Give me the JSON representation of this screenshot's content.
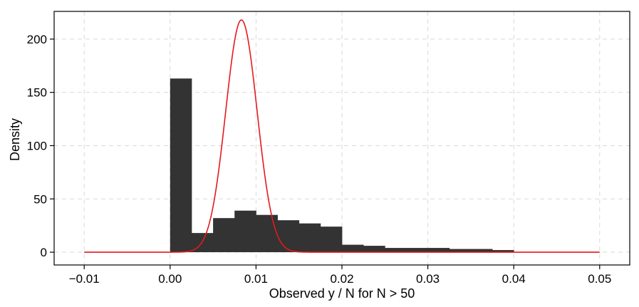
{
  "chart_data": {
    "type": "bar",
    "title": "",
    "xlabel": "Observed y / N for N > 50",
    "ylabel": "Density",
    "xlim": [
      -0.0135,
      0.0535
    ],
    "ylim": [
      -12,
      226
    ],
    "x_ticks": [
      -0.01,
      0.0,
      0.01,
      0.02,
      0.03,
      0.04,
      0.05
    ],
    "x_tick_labels": [
      "−0.01",
      "0.00",
      "0.01",
      "0.02",
      "0.03",
      "0.04",
      "0.05"
    ],
    "y_ticks": [
      0,
      50,
      100,
      150,
      200
    ],
    "y_tick_labels": [
      "0",
      "50",
      "100",
      "150",
      "200"
    ],
    "grid": true,
    "bar_color": "#333333",
    "curve_color": "#e31a1c",
    "histogram": {
      "bin_edges": [
        0.0,
        0.0025,
        0.005,
        0.0075,
        0.01,
        0.0125,
        0.015,
        0.0175,
        0.02,
        0.0225,
        0.025,
        0.0275,
        0.03,
        0.0325,
        0.035,
        0.0375,
        0.04
      ],
      "values": [
        163,
        18,
        32,
        39,
        35,
        30,
        27,
        24,
        7,
        6,
        4,
        4,
        4,
        3,
        3,
        2
      ]
    },
    "density_curve": {
      "type": "normal",
      "mean": 0.0083,
      "peak": 218,
      "x_range": [
        -0.01,
        0.05
      ]
    }
  }
}
